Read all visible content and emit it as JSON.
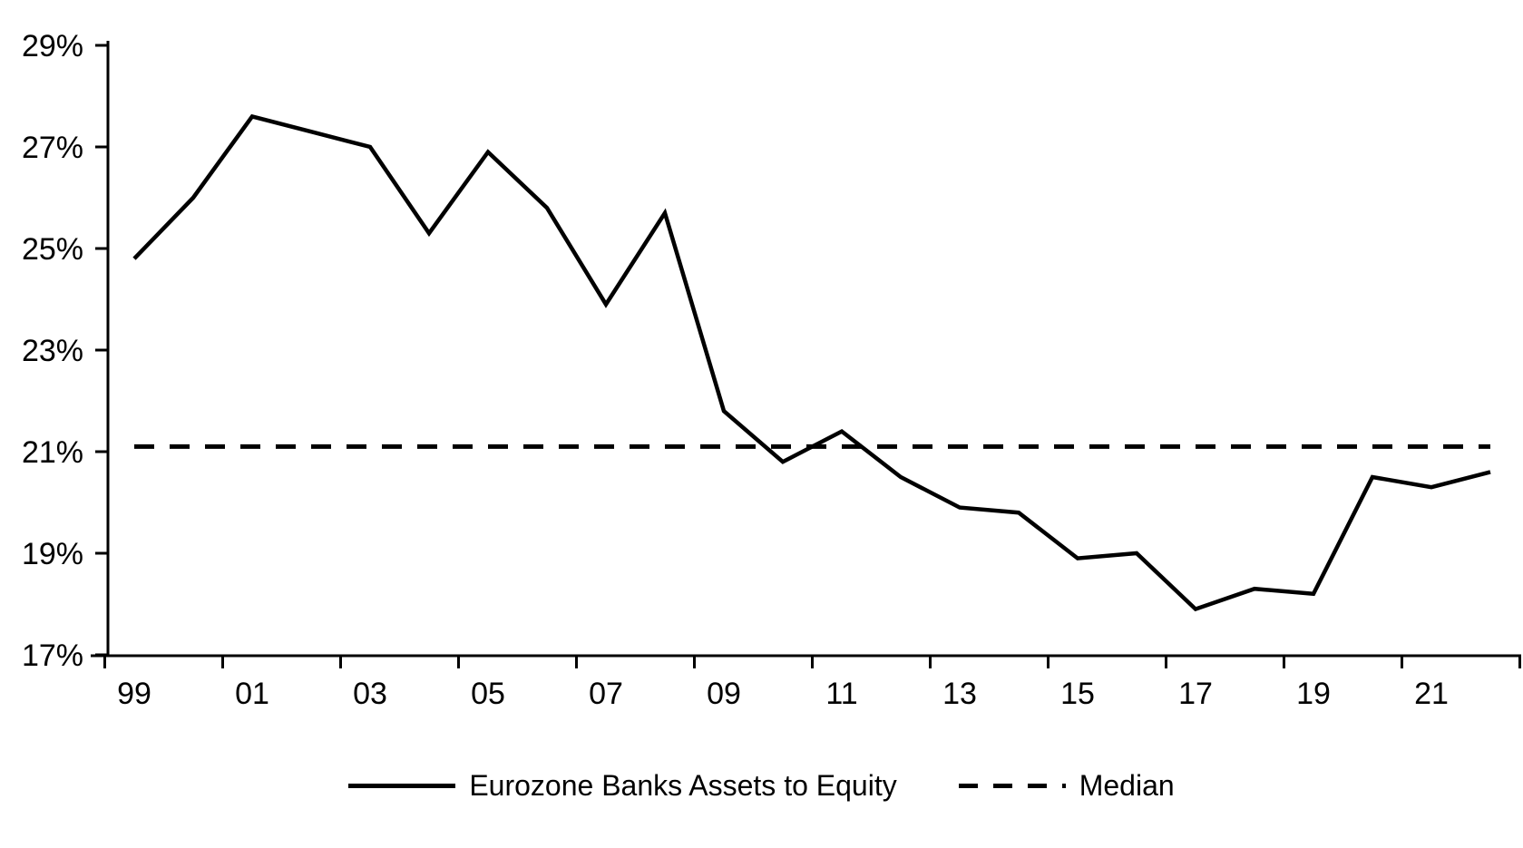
{
  "chart_data": {
    "type": "line",
    "title": "",
    "xlabel": "",
    "ylabel": "",
    "unit": "%",
    "x_years": [
      1999,
      2000,
      2001,
      2002,
      2003,
      2004,
      2005,
      2006,
      2007,
      2008,
      2009,
      2010,
      2011,
      2012,
      2013,
      2014,
      2015,
      2016,
      2017,
      2018,
      2019,
      2020,
      2021,
      2022
    ],
    "x_tick_labels": [
      "99",
      "01",
      "03",
      "05",
      "07",
      "09",
      "11",
      "13",
      "15",
      "17",
      "19",
      "21"
    ],
    "y_tick_labels": [
      "29%",
      "27%",
      "25%",
      "23%",
      "21%",
      "19%",
      "17%"
    ],
    "ylim": [
      17,
      29
    ],
    "y_tick_step": 2,
    "grid": false,
    "legend_position": "bottom-center",
    "series": [
      {
        "name": "Eurozone Banks Assets to Equity",
        "style": "solid",
        "values": [
          24.8,
          26.0,
          27.6,
          27.3,
          27.0,
          25.3,
          26.9,
          25.8,
          23.9,
          25.7,
          21.8,
          20.8,
          21.4,
          20.5,
          19.9,
          19.8,
          18.9,
          19.0,
          17.9,
          18.3,
          18.2,
          20.5,
          20.3,
          20.6
        ]
      },
      {
        "name": "Median",
        "style": "dashed",
        "value": 21.1
      }
    ],
    "colors": {
      "line": "#000000",
      "median": "#000000",
      "background": "#ffffff"
    }
  }
}
